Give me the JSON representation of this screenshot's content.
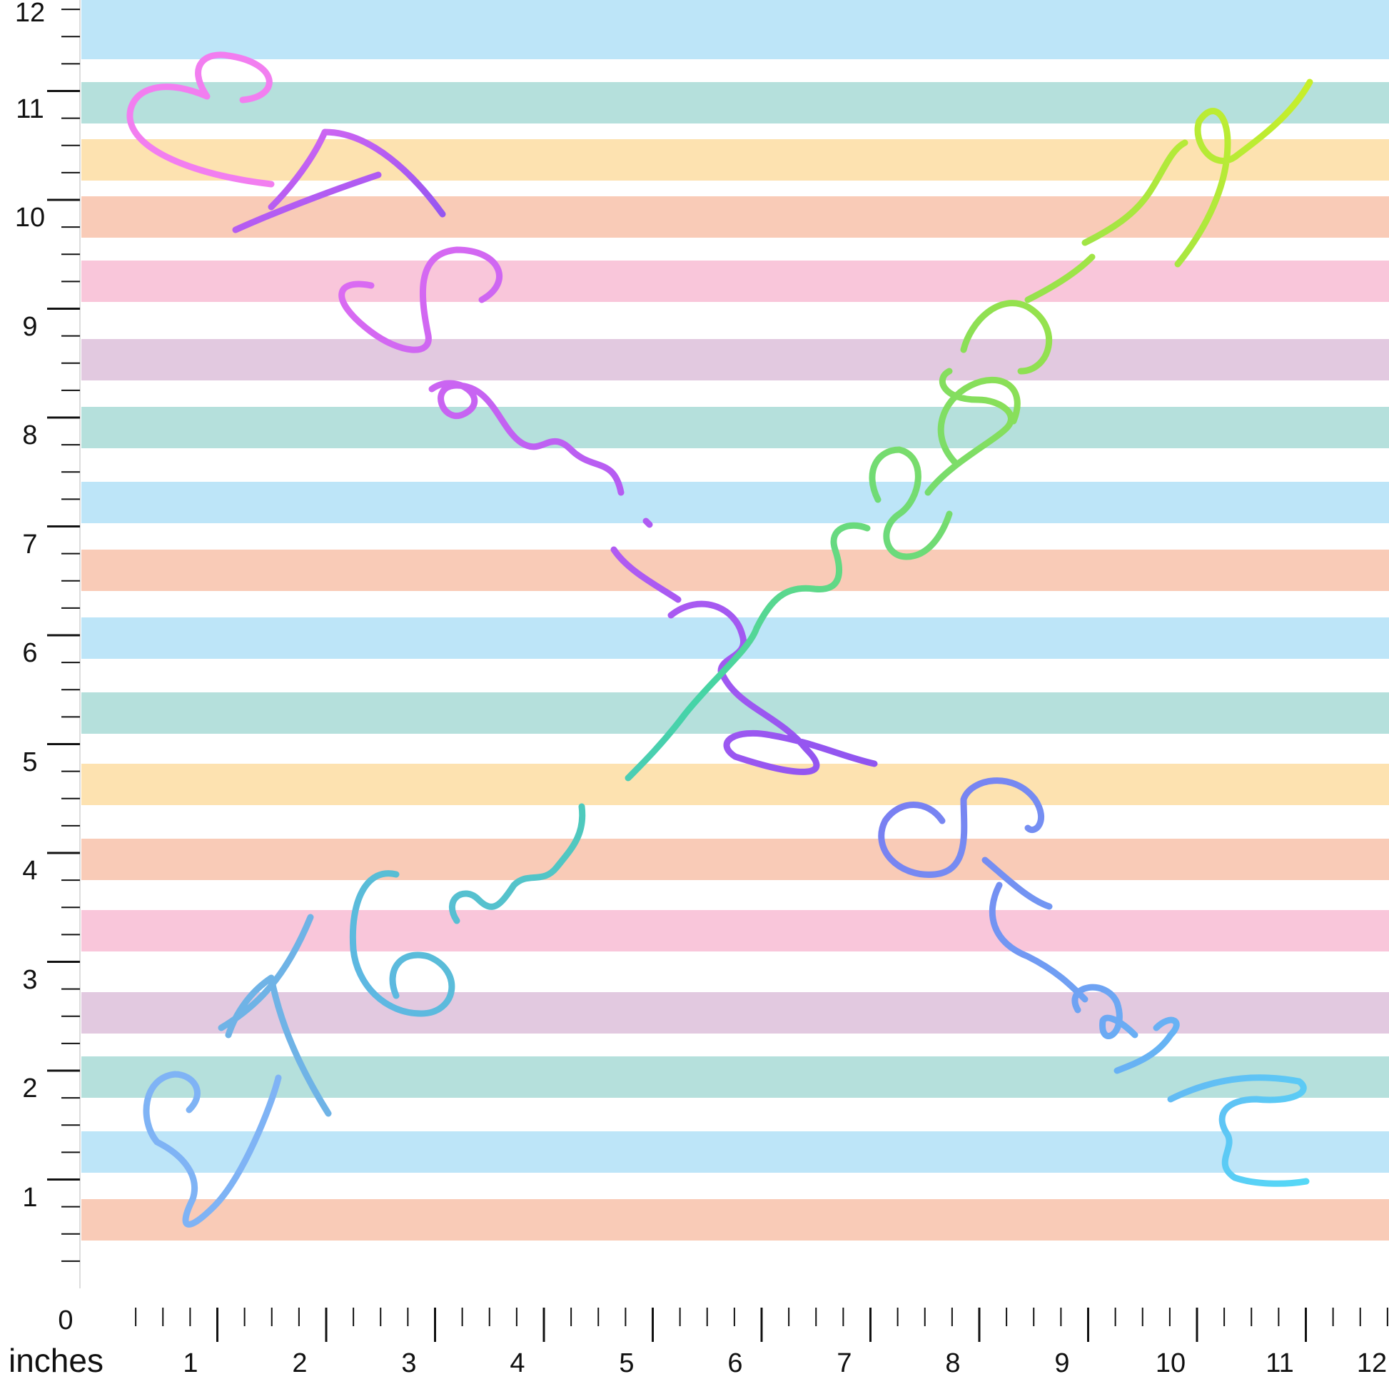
{
  "ruler": {
    "unit_label": "inches",
    "origin_label": "0",
    "x_labels": [
      "1",
      "2",
      "3",
      "4",
      "5",
      "6",
      "7",
      "8",
      "9",
      "10",
      "11",
      "12"
    ],
    "y_labels": [
      "1",
      "2",
      "3",
      "4",
      "5",
      "6",
      "7",
      "8",
      "9",
      "10",
      "11",
      "12"
    ],
    "ticks_per_inch": 4,
    "inches": 12
  },
  "fabric": {
    "script_text": "I Sewing Stash",
    "stripe_colors": [
      "#f9cbb7",
      "#bde5f8",
      "#b5e0dc",
      "#e2c9e0",
      "#f9c6da",
      "#f9cbb7",
      "#fde2b0",
      "#b5e0dc",
      "#bde5f8",
      "#f9cbb7",
      "#bde5f8",
      "#b5e0dc",
      "#e2c9e0",
      "#f9c6da",
      "#f9cbb7",
      "#fde2b0",
      "#b5e0dc",
      "#bde5f8"
    ],
    "heart_color_top": "#f27ef0",
    "heart_color_bottom": "#7fb3f5",
    "gradient_colors": {
      "diagonal_down": [
        "#dd6cf2",
        "#b45cf2",
        "#8f55f0"
      ],
      "diagonal_up": [
        "#5fb6e6",
        "#45d4a6",
        "#8fe052",
        "#c8ef2a"
      ],
      "stash_lower": [
        "#7a7cf2",
        "#6fa2f3",
        "#55d8f6"
      ]
    }
  }
}
